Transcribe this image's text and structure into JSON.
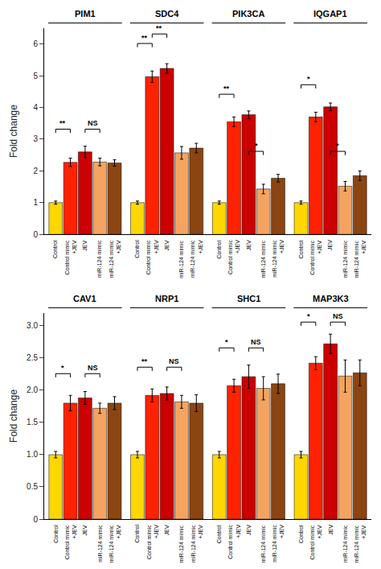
{
  "chart_data": [
    {
      "type": "bar",
      "categories": [
        "PIM1",
        "SDC4",
        "PIK3CA",
        "IQGAP1"
      ],
      "series": [
        {
          "name": "Control",
          "color": "#FFD700",
          "values": [
            1.0,
            1.0,
            1.0,
            1.0
          ],
          "errors": [
            0.05,
            0.05,
            0.05,
            0.05
          ]
        },
        {
          "name": "Control mimic\n+JEV",
          "color": "#FF2200",
          "values": [
            2.27,
            4.97,
            3.55,
            3.7
          ],
          "errors": [
            0.13,
            0.18,
            0.15,
            0.15
          ]
        },
        {
          "name": "JEV",
          "color": "#CC0000",
          "values": [
            2.6,
            5.23,
            3.77,
            4.02
          ],
          "errors": [
            0.18,
            0.15,
            0.12,
            0.12
          ]
        },
        {
          "name": "miR-124 mimic",
          "color": "#F4A460",
          "values": [
            2.28,
            2.57,
            1.43,
            1.52
          ],
          "errors": [
            0.12,
            0.2,
            0.15,
            0.15
          ]
        },
        {
          "name": "miR-124 mimic\n+JEV",
          "color": "#8B4513",
          "values": [
            2.25,
            2.72,
            1.77,
            1.85
          ],
          "errors": [
            0.1,
            0.15,
            0.12,
            0.15
          ]
        }
      ],
      "ylabel": "Fold change",
      "ylim": [
        0,
        6.5
      ],
      "yticks": [
        0,
        1,
        2,
        3,
        4,
        5,
        6
      ],
      "grid": false,
      "annotations": [
        {
          "category": "PIM1",
          "between": [
            "Control",
            "Control mimic\n+JEV"
          ],
          "y": 3.2,
          "text": "**"
        },
        {
          "category": "PIM1",
          "between": [
            "JEV",
            "miR-124 mimic"
          ],
          "y": 3.2,
          "text": "NS"
        },
        {
          "category": "SDC4",
          "between": [
            "Control",
            "Control mimic\n+JEV"
          ],
          "y": 5.9,
          "text": "**"
        },
        {
          "category": "SDC4",
          "between": [
            "Control mimic\n+JEV",
            "JEV"
          ],
          "y": 6.2,
          "text": "**"
        },
        {
          "category": "PIK3CA",
          "between": [
            "Control",
            "Control mimic\n+JEV"
          ],
          "y": 4.3,
          "text": "**"
        },
        {
          "category": "PIK3CA",
          "between": [
            "JEV",
            "miR-124 mimic"
          ],
          "y": 2.5,
          "text": "*"
        },
        {
          "category": "IQGAP1",
          "between": [
            "Control",
            "Control mimic\n+JEV"
          ],
          "y": 4.6,
          "text": "*"
        },
        {
          "category": "IQGAP1",
          "between": [
            "JEV",
            "miR-124 mimic"
          ],
          "y": 2.5,
          "text": "*"
        }
      ]
    },
    {
      "type": "bar",
      "categories": [
        "CAV1",
        "NRP1",
        "SHC1",
        "MAP3K3"
      ],
      "series": [
        {
          "name": "Control",
          "color": "#FFD700",
          "values": [
            1.0,
            1.0,
            1.0,
            1.0
          ],
          "errors": [
            0.05,
            0.05,
            0.05,
            0.05
          ]
        },
        {
          "name": "Control mimic\n+JEV",
          "color": "#FF2200",
          "values": [
            1.8,
            1.92,
            2.07,
            2.42
          ],
          "errors": [
            0.12,
            0.1,
            0.1,
            0.1
          ]
        },
        {
          "name": "JEV",
          "color": "#CC0000",
          "values": [
            1.88,
            1.95,
            2.21,
            2.72
          ],
          "errors": [
            0.1,
            0.1,
            0.18,
            0.15
          ]
        },
        {
          "name": "miR-124 mimic",
          "color": "#F4A460",
          "values": [
            1.72,
            1.82,
            2.03,
            2.22
          ],
          "errors": [
            0.08,
            0.1,
            0.18,
            0.25
          ]
        },
        {
          "name": "miR-124 mimic\n+JEV",
          "color": "#8B4513",
          "values": [
            1.8,
            1.8,
            2.1,
            2.27
          ],
          "errors": [
            0.1,
            0.13,
            0.15,
            0.2
          ]
        }
      ],
      "ylabel": "Fold change",
      "ylim": [
        0,
        3.2
      ],
      "yticks": [
        0,
        0.5,
        {
          "value": 1,
          "label": "1.0"
        },
        1.5,
        {
          "value": 2,
          "label": "2.0"
        },
        2.5,
        {
          "value": 3,
          "label": "3.0"
        }
      ],
      "grid": false,
      "annotations": [
        {
          "category": "CAV1",
          "between": [
            "Control",
            "Control mimic\n+JEV"
          ],
          "y": 2.2,
          "text": "*"
        },
        {
          "category": "CAV1",
          "between": [
            "JEV",
            "miR-124 mimic"
          ],
          "y": 2.2,
          "text": "NS"
        },
        {
          "category": "NRP1",
          "between": [
            "Control",
            "Control mimic\n+JEV"
          ],
          "y": 2.3,
          "text": "**"
        },
        {
          "category": "NRP1",
          "between": [
            "JEV",
            "miR-124 mimic"
          ],
          "y": 2.3,
          "text": "NS"
        },
        {
          "category": "SHC1",
          "between": [
            "Control",
            "Control mimic\n+JEV"
          ],
          "y": 2.6,
          "text": "*"
        },
        {
          "category": "SHC1",
          "between": [
            "JEV",
            "miR-124 mimic"
          ],
          "y": 2.6,
          "text": "NS"
        },
        {
          "category": "MAP3K3",
          "between": [
            "Control",
            "Control mimic\n+JEV"
          ],
          "y": 3.0,
          "text": "*"
        },
        {
          "category": "MAP3K3",
          "between": [
            "JEV",
            "miR-124 mimic"
          ],
          "y": 3.0,
          "text": "NS"
        }
      ]
    }
  ]
}
